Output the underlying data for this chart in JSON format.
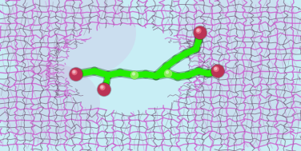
{
  "bg_color": "#c8eef5",
  "mesh_color_main": "#cc55cc",
  "mesh_color_dark": "#664466",
  "mesh_alpha_main": 0.75,
  "mesh_alpha_dark": 0.6,
  "molecule_color": "#22ee00",
  "molecule_dark": "#005500",
  "oxygen_color": "#bb3355",
  "fig_width": 3.76,
  "fig_height": 1.89,
  "dpi": 100,
  "mesh_lw_main": 1.0,
  "mesh_lw_dark": 0.7,
  "stick_lw": 5.5,
  "stick_shadow_lw": 8.0
}
